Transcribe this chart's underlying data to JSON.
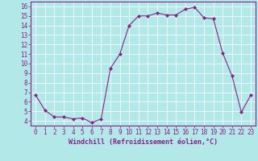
{
  "x": [
    0,
    1,
    2,
    3,
    4,
    5,
    6,
    7,
    8,
    9,
    10,
    11,
    12,
    13,
    14,
    15,
    16,
    17,
    18,
    19,
    20,
    21,
    22,
    23
  ],
  "y": [
    6.7,
    5.1,
    4.4,
    4.4,
    4.2,
    4.3,
    3.8,
    4.2,
    9.5,
    11.0,
    14.0,
    15.0,
    15.0,
    15.3,
    15.1,
    15.1,
    15.7,
    15.9,
    14.8,
    14.7,
    11.1,
    8.7,
    4.9,
    6.7
  ],
  "line_color": "#882288",
  "marker": "D",
  "marker_size": 2.0,
  "bg_color": "#b2e8e8",
  "grid_color": "#ffffff",
  "xlabel": "Windchill (Refroidissement éolien,°C)",
  "ylabel": "",
  "ylim": [
    3.5,
    16.5
  ],
  "xlim": [
    -0.5,
    23.5
  ],
  "yticks": [
    4,
    5,
    6,
    7,
    8,
    9,
    10,
    11,
    12,
    13,
    14,
    15,
    16
  ],
  "xticks": [
    0,
    1,
    2,
    3,
    4,
    5,
    6,
    7,
    8,
    9,
    10,
    11,
    12,
    13,
    14,
    15,
    16,
    17,
    18,
    19,
    20,
    21,
    22,
    23
  ],
  "tick_color": "#882288",
  "label_color": "#882288",
  "spine_color": "#882288",
  "tick_fontsize": 5.5,
  "xlabel_fontsize": 6.0,
  "figsize": [
    3.2,
    2.0
  ],
  "dpi": 100
}
